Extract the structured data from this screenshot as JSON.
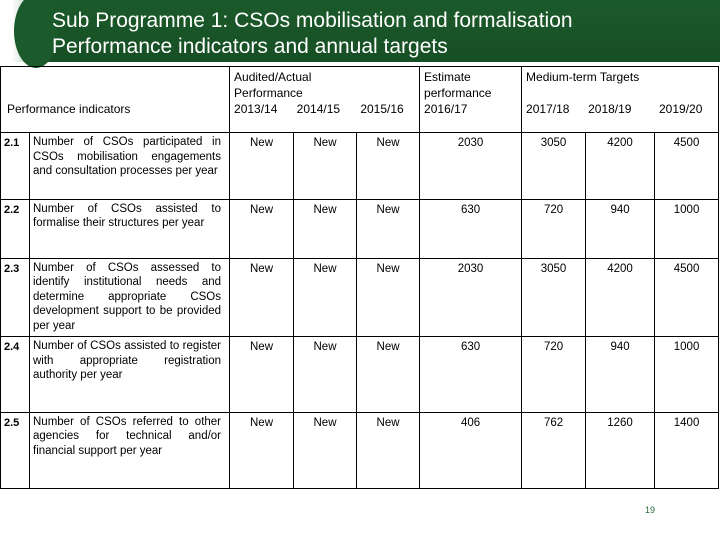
{
  "slide": {
    "title_line1": "Sub Programme 1: CSOs mobilisation and formalisation",
    "title_line2": "Performance indicators and annual targets",
    "page_number": "19"
  },
  "table": {
    "header": {
      "indicators": "Performance indicators",
      "audited_line1": "Audited/Actual",
      "audited_line2": "Performance",
      "estimate_line1": "Estimate",
      "estimate_line2": "performance",
      "mtt": "Medium-term Targets",
      "years": [
        "2013/14",
        "2014/15",
        "2015/16",
        "2016/17",
        "2017/18",
        "2018/19",
        "2019/20"
      ]
    },
    "rows": [
      {
        "num": "2.1",
        "indicator": "Number of CSOs participated in CSOs mobilisation engagements and consultation processes per year",
        "values": [
          "New",
          "New",
          "New",
          "2030",
          "3050",
          "4200",
          "4500"
        ]
      },
      {
        "num": "2.2",
        "indicator": "Number of CSOs assisted to formalise their structures per year",
        "values": [
          "New",
          "New",
          "New",
          "630",
          "720",
          "940",
          "1000"
        ]
      },
      {
        "num": "2.3",
        "indicator": "Number of CSOs assessed to identify institutional needs and determine appropriate CSOs development support to be provided per year",
        "values": [
          "New",
          "New",
          "New",
          "2030",
          "3050",
          "4200",
          "4500"
        ]
      },
      {
        "num": "2.4",
        "indicator": "Number of CSOs assisted to register with appropriate registration authority per year",
        "values": [
          "New",
          "New",
          "New",
          "630",
          "720",
          "940",
          "1000"
        ]
      },
      {
        "num": "2.5",
        "indicator": "Number of CSOs referred to other agencies for technical and/or financial support per year",
        "values": [
          "New",
          "New",
          "New",
          "406",
          "762",
          "1260",
          "1400"
        ]
      }
    ]
  }
}
